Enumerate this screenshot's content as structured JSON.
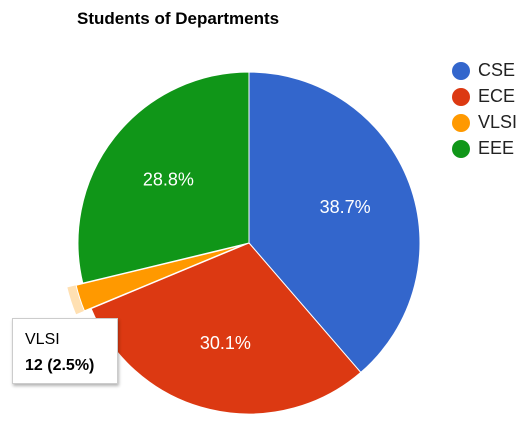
{
  "chart_data": {
    "type": "pie",
    "title": "Students of Departments",
    "slices": [
      {
        "label": "CSE",
        "percent": 38.7,
        "color": "#3366cc",
        "value_label": "38.7%"
      },
      {
        "label": "ECE",
        "percent": 30.1,
        "color": "#dc3912",
        "value_label": "30.1%"
      },
      {
        "label": "VLSI",
        "percent": 2.5,
        "value": 12,
        "color": "#ff9900",
        "value_label": ""
      },
      {
        "label": "EEE",
        "percent": 28.8,
        "color": "#109618",
        "value_label": "28.8%"
      }
    ],
    "legend_position": "right",
    "highlighted_slice": "VLSI"
  },
  "tooltip": {
    "name": "VLSI",
    "value_text": "12 (2.5%)"
  }
}
